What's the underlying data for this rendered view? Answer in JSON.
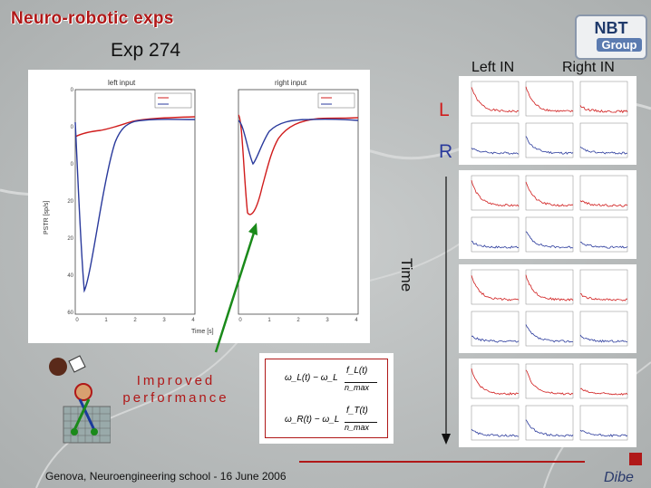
{
  "slide": {
    "title": "Neuro-robotic exps",
    "experiment": "Exp 274",
    "logo": {
      "top": "NBT",
      "bottom": "Group"
    },
    "column_headers": {
      "left": "Left IN",
      "right": "Right IN"
    },
    "row_labels": {
      "left": "L",
      "right": "R"
    },
    "time_label": "Time",
    "improved_text": {
      "line1": "Improved",
      "line2": "performance"
    },
    "footer": "Genova, Neuroengineering school - 16 June 2006"
  },
  "plots": {
    "left_title": "left input",
    "right_title": "right input",
    "ylabel": "PSTR [sp/s]",
    "xlabel": "Time [s]",
    "yticks": [
      "0",
      "0",
      "0",
      "20",
      "20",
      "40",
      "60"
    ],
    "xticks": [
      "0",
      "1",
      "2",
      "3",
      "4"
    ]
  },
  "equations": {
    "eq1_left": "ω_L(t) − ω_L",
    "eq1_right": "f_L(t)",
    "eq1_den": "n_max",
    "eq2_left": "ω_R(t) − ω_L",
    "eq2_right": "f_T(t)",
    "eq2_den": "n_max"
  },
  "colors": {
    "red": "#d01c1c",
    "blue": "#2a3a9c",
    "green": "#1a8a1a",
    "accent": "#b01818"
  }
}
